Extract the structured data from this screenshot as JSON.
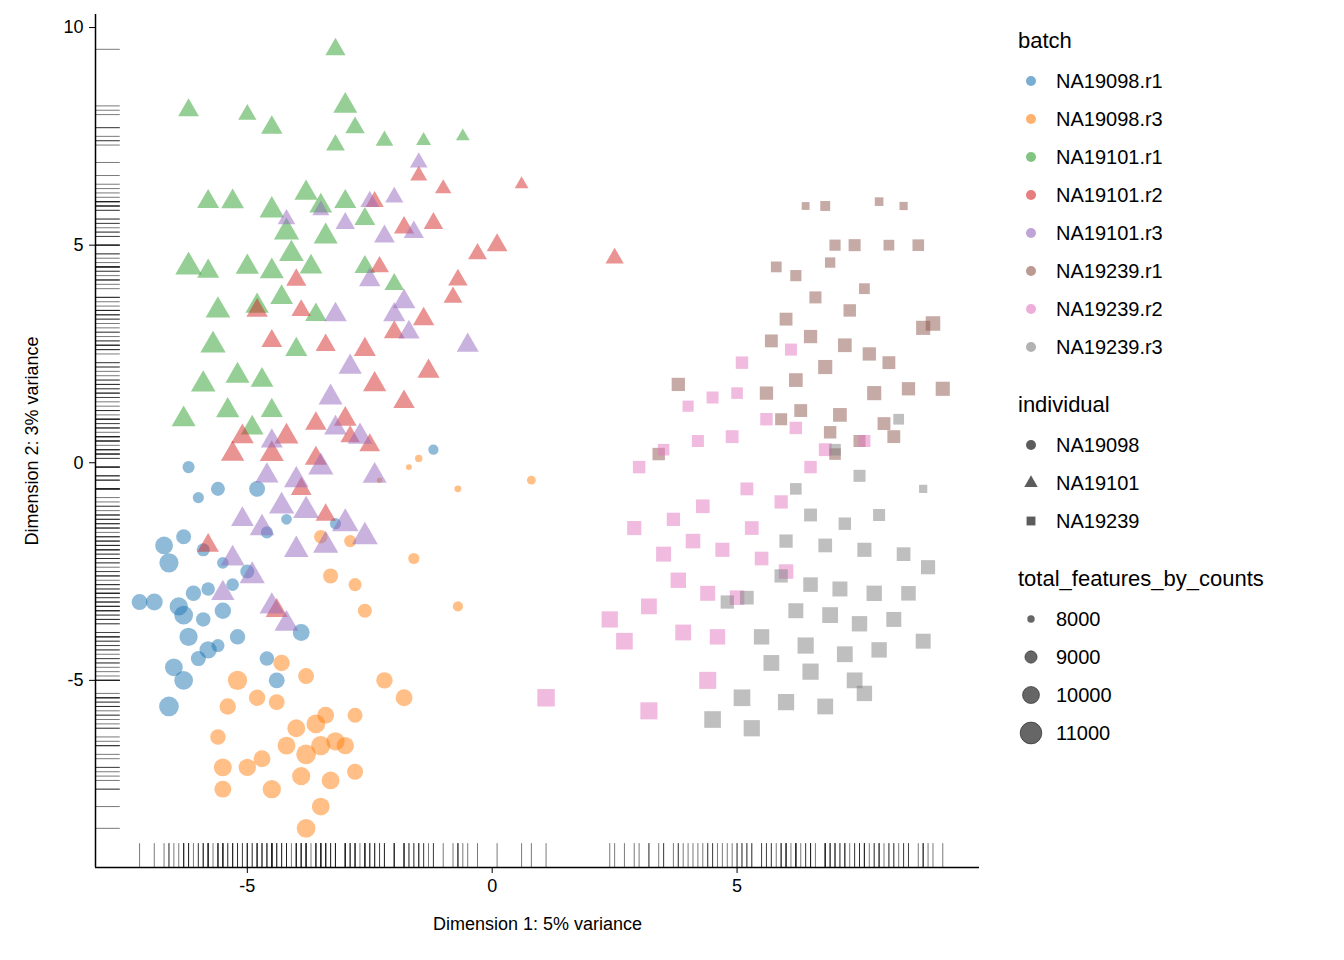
{
  "chart_data": {
    "type": "scatter",
    "x_label": "Dimension 1: 5% variance",
    "y_label": "Dimension 2: 3% variance",
    "xlim": [
      -8.1,
      9.95
    ],
    "ylim": [
      -9.3,
      10.3
    ],
    "xticks": [
      -5,
      0,
      5
    ],
    "yticks": [
      -5,
      0,
      5,
      10
    ],
    "legend": "right",
    "color_legend_title": "batch",
    "marker_legend": {
      "title": "individual",
      "items": [
        {
          "name": "NA19098",
          "marker": "circle"
        },
        {
          "name": "NA19101",
          "marker": "triangle"
        },
        {
          "name": "NA19239",
          "marker": "square"
        }
      ]
    },
    "size_legend": {
      "title": "total_features_by_counts",
      "ticks": [
        8000,
        9000,
        10000,
        11000
      ]
    },
    "size_lim": [
      7500,
      11500
    ],
    "series": [
      {
        "name": "NA19098.r1",
        "color": "#1f77b4",
        "marker": "circle",
        "x": [
          -6.2,
          -5.6,
          -6.0,
          -6.7,
          -6.3,
          -5.9,
          -5.5,
          -6.6,
          -7.2,
          -6.9,
          -6.1,
          -5.8,
          -5.3,
          -6.3,
          -5.9,
          -5.5,
          -6.2,
          -5.8,
          -6.5,
          -6.0,
          -6.6,
          -6.3,
          -4.8,
          -4.6,
          -5.0,
          -4.2,
          -3.9,
          -4.6,
          -4.4,
          -3.2,
          -1.2,
          -5.6,
          -6.4,
          -5.2
        ],
        "y": [
          -0.1,
          -0.6,
          -0.8,
          -1.9,
          -1.7,
          -2.0,
          -2.3,
          -2.3,
          -3.2,
          -3.2,
          -3.0,
          -2.9,
          -2.8,
          -3.5,
          -3.6,
          -3.4,
          -4.0,
          -4.3,
          -4.7,
          -4.5,
          -5.6,
          -5.0,
          -0.6,
          -1.6,
          -2.5,
          -1.3,
          -3.9,
          -4.5,
          -5.0,
          -1.4,
          0.3,
          -4.2,
          -3.3,
          -4.0
        ],
        "sizes": [
          9000,
          9400,
          8800,
          10200,
          9600,
          9200,
          8900,
          10500,
          9800,
          10000,
          9700,
          9300,
          9100,
          10400,
          9500,
          9900,
          10300,
          10100,
          10200,
          9600,
          10600,
          10400,
          9800,
          9000,
          9400,
          8700,
          10000,
          9500,
          9800,
          8800,
          8600,
          9200,
          10300,
          9700
        ]
      },
      {
        "name": "NA19098.r3",
        "color": "#ff7f0e",
        "marker": "circle",
        "x": [
          -3.8,
          -3.5,
          -4.5,
          -5.5,
          -5.5,
          -5.0,
          -4.7,
          -4.2,
          -3.8,
          -3.5,
          -3.2,
          -3.0,
          -3.6,
          -4.0,
          -3.4,
          -4.4,
          -4.8,
          -5.2,
          -5.4,
          -5.6,
          -2.8,
          -2.8,
          -4.3,
          -3.8,
          -2.2,
          -1.8,
          -2.6,
          -2.8,
          -3.3,
          -3.5,
          -2.9,
          -1.6,
          -0.7,
          -0.7,
          0.8,
          -1.7,
          -1.5,
          -2.3,
          -3.9,
          -3.3
        ],
        "y": [
          -8.4,
          -7.9,
          -7.5,
          -7.5,
          -7.0,
          -7.0,
          -6.8,
          -6.5,
          -6.7,
          -6.5,
          -6.4,
          -6.5,
          -6.0,
          -6.1,
          -5.8,
          -5.5,
          -5.4,
          -5.0,
          -5.6,
          -6.3,
          -7.1,
          -5.8,
          -4.6,
          -4.9,
          -5.0,
          -5.4,
          -3.4,
          -2.8,
          -2.6,
          -1.7,
          -1.8,
          -2.2,
          -3.3,
          -0.6,
          -0.4,
          -0.1,
          0.1,
          -0.4,
          -7.2,
          -7.3
        ],
        "sizes": [
          10400,
          10200,
          10300,
          10000,
          10200,
          10100,
          10000,
          10200,
          10600,
          10500,
          10300,
          10100,
          10400,
          10200,
          10000,
          9800,
          9900,
          10500,
          9900,
          9700,
          9800,
          9600,
          9900,
          9800,
          9900,
          10000,
          9400,
          9200,
          9600,
          9300,
          9000,
          8800,
          8600,
          7900,
          8300,
          7700,
          8000,
          7600,
          10300,
          10200
        ]
      },
      {
        "name": "NA19101.r1",
        "color": "#2ca02c",
        "marker": "triangle",
        "x": [
          -3.2,
          -6.2,
          -5.0,
          -4.5,
          -3.0,
          -2.8,
          -2.2,
          -3.2,
          -1.4,
          -0.6,
          -5.8,
          -5.3,
          -4.5,
          -3.8,
          -3.5,
          -3.0,
          -2.6,
          -3.4,
          -4.2,
          -4.1,
          -3.7,
          -6.2,
          -5.8,
          -5.0,
          -4.5,
          -5.6,
          -4.8,
          -4.3,
          -3.6,
          -5.7,
          -5.2,
          -4.7,
          -5.9,
          -6.3,
          -5.4,
          -4.5,
          -4.9,
          -2.6,
          -2.0,
          -4.0
        ],
        "y": [
          9.5,
          8.1,
          8.0,
          7.7,
          8.2,
          7.7,
          7.4,
          7.3,
          7.4,
          7.5,
          6.0,
          6.0,
          5.8,
          6.2,
          5.9,
          6.0,
          5.6,
          5.2,
          5.3,
          4.8,
          4.5,
          4.5,
          4.4,
          4.5,
          4.4,
          3.5,
          3.6,
          3.8,
          3.4,
          2.7,
          2.0,
          1.9,
          1.8,
          1.0,
          1.2,
          1.2,
          0.8,
          4.5,
          4.1,
          2.6
        ],
        "sizes": [
          9600,
          9700,
          9300,
          9800,
          10200,
          9500,
          9200,
          9400,
          8800,
          8600,
          9900,
          10000,
          10300,
          10100,
          10000,
          9900,
          9700,
          10200,
          10400,
          10300,
          10000,
          10600,
          9900,
          10100,
          10200,
          10300,
          10100,
          10000,
          9800,
          10400,
          10200,
          10000,
          10300,
          10200,
          10100,
          9900,
          10000,
          9700,
          9500,
          9900
        ]
      },
      {
        "name": "NA19101.r2",
        "color": "#d62728",
        "marker": "triangle",
        "x": [
          0.6,
          -1.0,
          -1.5,
          -2.4,
          -1.8,
          -1.2,
          0.1,
          -0.3,
          2.5,
          -0.7,
          -0.8,
          -1.4,
          -2.0,
          -2.6,
          -3.4,
          -4.8,
          -4.5,
          -3.9,
          -1.3,
          -2.4,
          -3.0,
          -3.6,
          -4.2,
          -5.1,
          -5.3,
          -4.5,
          -3.6,
          -2.5,
          -1.8,
          -3.4,
          -3.9,
          -5.8,
          -4.4,
          -2.9,
          -2.3,
          -4.0
        ],
        "y": [
          6.4,
          6.3,
          6.6,
          6.0,
          5.4,
          5.5,
          5.0,
          4.8,
          4.7,
          4.2,
          3.8,
          3.3,
          3.0,
          2.6,
          2.7,
          3.5,
          2.8,
          3.5,
          2.1,
          1.8,
          1.0,
          0.9,
          0.6,
          0.6,
          0.2,
          0.2,
          0.1,
          0.4,
          1.4,
          -1.2,
          -0.6,
          -1.9,
          -3.4,
          0.6,
          4.5,
          4.2
        ],
        "sizes": [
          8600,
          9000,
          9100,
          9300,
          9600,
          9500,
          9700,
          9400,
          9300,
          9500,
          9400,
          9800,
          9700,
          9900,
          9600,
          9800,
          9700,
          9500,
          9900,
          10100,
          10000,
          9800,
          10200,
          10000,
          10100,
          10200,
          9900,
          9700,
          9800,
          9600,
          9700,
          9800,
          9900,
          9500,
          9400,
          9600
        ]
      },
      {
        "name": "NA19101.r3",
        "color": "#9467bd",
        "marker": "triangle",
        "x": [
          -1.5,
          -2.5,
          -2.0,
          -1.6,
          -2.2,
          -3.5,
          -4.2,
          -3.0,
          -2.5,
          -1.8,
          -2.0,
          -1.7,
          -0.5,
          -3.2,
          -2.9,
          -3.3,
          -2.7,
          -2.4,
          -3.5,
          -4.0,
          -4.6,
          -4.3,
          -3.8,
          -3.0,
          -2.6,
          -4.7,
          -5.1,
          -5.3,
          -4.9,
          -5.5,
          -4.5,
          -4.2,
          -3.4,
          -4.0,
          -3.2,
          -4.5
        ],
        "y": [
          6.9,
          6.0,
          6.1,
          5.3,
          5.2,
          5.8,
          5.6,
          5.5,
          4.2,
          3.7,
          3.4,
          3.0,
          2.7,
          3.4,
          2.2,
          1.5,
          0.6,
          -0.3,
          -0.1,
          -0.4,
          -0.3,
          -1.0,
          -1.1,
          -1.4,
          -1.7,
          -1.5,
          -1.3,
          -2.2,
          -2.6,
          -3.0,
          -3.3,
          -3.7,
          -1.9,
          -2.0,
          0.8,
          0.5
        ],
        "sizes": [
          9200,
          9400,
          9300,
          9600,
          9700,
          9100,
          9200,
          9500,
          9800,
          10000,
          9900,
          9800,
          9900,
          10000,
          10100,
          10200,
          10300,
          10200,
          10400,
          10300,
          10100,
          10400,
          10500,
          10600,
          10500,
          10300,
          10000,
          10200,
          10400,
          10100,
          10300,
          10200,
          10400,
          10300,
          10000,
          9900
        ]
      },
      {
        "name": "NA19239.r1",
        "color": "#8c564b",
        "marker": "square",
        "x": [
          7.9,
          8.4,
          6.4,
          6.8,
          7.0,
          7.4,
          6.9,
          8.1,
          8.7,
          5.8,
          6.2,
          7.6,
          6.6,
          7.3,
          6.0,
          6.5,
          5.7,
          7.2,
          7.7,
          8.1,
          8.8,
          9.0,
          6.8,
          6.2,
          5.6,
          6.3,
          7.1,
          7.8,
          8.5,
          9.2,
          6.9,
          7.5,
          8.2,
          3.8,
          3.4,
          7.0,
          8.0,
          5.9
        ],
        "y": [
          6.0,
          5.9,
          5.9,
          5.9,
          5.0,
          5.0,
          4.6,
          5.0,
          5.0,
          4.5,
          4.3,
          4.0,
          3.8,
          3.5,
          3.3,
          2.9,
          2.8,
          2.7,
          2.5,
          2.3,
          3.1,
          3.2,
          2.2,
          1.9,
          1.6,
          1.2,
          1.1,
          1.6,
          1.7,
          1.7,
          0.7,
          0.5,
          0.6,
          1.8,
          0.2,
          0.2,
          0.9,
          1.0
        ],
        "sizes": [
          8500,
          8400,
          8300,
          8800,
          9100,
          9300,
          8900,
          9000,
          9200,
          9000,
          9100,
          9000,
          9300,
          9400,
          9500,
          9600,
          9500,
          9700,
          9600,
          9500,
          9800,
          9900,
          9800,
          9700,
          9600,
          9500,
          9700,
          9800,
          9600,
          9800,
          9400,
          9300,
          9500,
          9600,
          9400,
          9200,
          9500,
          9300
        ]
      },
      {
        "name": "NA19239.r2",
        "color": "#e377c2",
        "marker": "square",
        "x": [
          5.1,
          6.1,
          5.0,
          4.5,
          4.0,
          5.6,
          4.9,
          4.2,
          3.5,
          3.0,
          2.9,
          3.7,
          4.3,
          5.2,
          5.9,
          6.5,
          4.1,
          3.5,
          4.7,
          5.5,
          6.0,
          3.8,
          4.4,
          5.0,
          3.2,
          2.4,
          2.7,
          3.9,
          4.6,
          1.1,
          3.2,
          4.4,
          7.6,
          6.8,
          5.3,
          6.2
        ],
        "y": [
          2.3,
          2.6,
          1.6,
          1.5,
          1.3,
          1.0,
          0.6,
          0.5,
          0.3,
          -0.1,
          -1.5,
          -1.3,
          -1.0,
          -0.6,
          -0.9,
          -0.1,
          -1.8,
          -2.1,
          -2.0,
          -2.2,
          -2.5,
          -2.7,
          -3.0,
          -3.1,
          -3.3,
          -3.6,
          -4.1,
          -3.9,
          -4.0,
          -5.4,
          -5.7,
          -5.0,
          0.5,
          0.3,
          -1.5,
          0.8
        ],
        "sizes": [
          9400,
          9300,
          9200,
          9300,
          9100,
          9400,
          9500,
          9300,
          9200,
          9400,
          9800,
          9600,
          9700,
          9500,
          9600,
          9400,
          9900,
          10000,
          9800,
          9700,
          9900,
          10100,
          10000,
          9900,
          10200,
          10300,
          10400,
          10200,
          10100,
          10600,
          10500,
          10500,
          9300,
          9500,
          9700,
          9400
        ]
      },
      {
        "name": "NA19239.r3",
        "color": "#7f7f7f",
        "marker": "square",
        "x": [
          8.3,
          7.0,
          7.5,
          8.8,
          6.2,
          6.5,
          7.2,
          7.9,
          6.0,
          6.8,
          7.6,
          8.4,
          8.9,
          5.9,
          6.5,
          7.1,
          7.8,
          8.5,
          5.2,
          4.8,
          6.2,
          6.9,
          7.5,
          8.2,
          5.5,
          6.4,
          7.2,
          7.9,
          5.7,
          6.5,
          7.4,
          5.1,
          6.0,
          6.8,
          4.5,
          5.3,
          7.6,
          8.8
        ],
        "y": [
          1.0,
          0.3,
          -0.3,
          -0.6,
          -0.6,
          -1.2,
          -1.4,
          -1.2,
          -1.8,
          -1.9,
          -2.0,
          -2.1,
          -2.4,
          -2.6,
          -2.8,
          -2.9,
          -3.0,
          -3.0,
          -3.1,
          -3.2,
          -3.4,
          -3.5,
          -3.7,
          -3.6,
          -4.0,
          -4.2,
          -4.4,
          -4.3,
          -4.6,
          -4.8,
          -5.0,
          -5.4,
          -5.5,
          -5.6,
          -5.9,
          -6.1,
          -5.3,
          -4.1
        ],
        "sizes": [
          9000,
          9200,
          9300,
          8400,
          9200,
          9500,
          9400,
          9300,
          9600,
          9700,
          9800,
          9700,
          9800,
          9600,
          9900,
          10000,
          10100,
          9900,
          9700,
          9600,
          10000,
          10200,
          10100,
          10000,
          10100,
          10300,
          10200,
          10100,
          10200,
          10300,
          10200,
          10400,
          10300,
          10200,
          10400,
          10300,
          10100,
          10000
        ]
      }
    ]
  }
}
